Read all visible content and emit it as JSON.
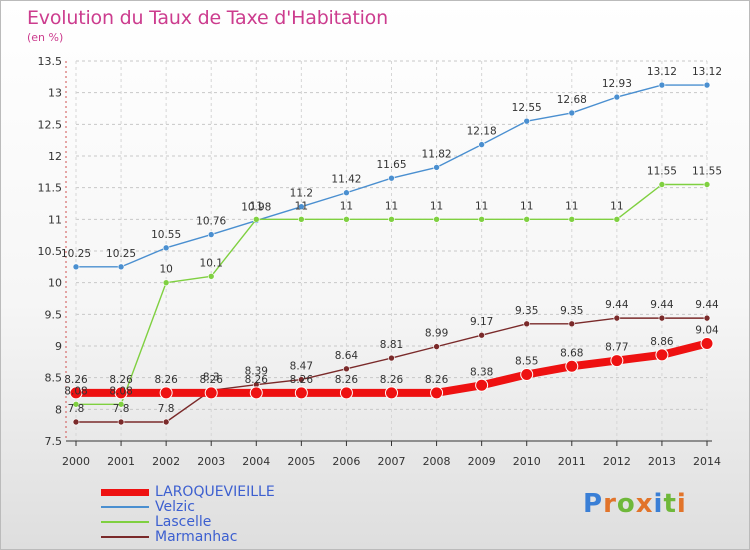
{
  "header": {
    "title": "Evolution du Taux de Taxe d'Habitation",
    "subtitle": "(en %)"
  },
  "logo": {
    "text": "Proxiti",
    "colors": [
      "#3a7fd6",
      "#e2742a",
      "#6fb83a",
      "#e2742a",
      "#3a7fd6",
      "#6fb83a",
      "#e2742a"
    ]
  },
  "chart_data": {
    "type": "line",
    "x": [
      2000,
      2001,
      2002,
      2003,
      2004,
      2005,
      2006,
      2007,
      2008,
      2009,
      2010,
      2011,
      2012,
      2013,
      2014
    ],
    "ylim": [
      7.5,
      13.5
    ],
    "yticks": [
      "7.5",
      "8",
      "8.5",
      "9",
      "9.5",
      "10",
      "10.5",
      "11",
      "11.5",
      "12",
      "12.5",
      "13",
      "13.5"
    ],
    "grid": "horizontal dashed",
    "legend_position": "bottom-left",
    "series": [
      {
        "name": "LAROQUEVIEILLE",
        "color": "#ee1111",
        "values": [
          8.26,
          8.26,
          8.26,
          8.26,
          8.26,
          8.26,
          8.26,
          8.26,
          8.26,
          8.38,
          8.55,
          8.68,
          8.77,
          8.86,
          9.04
        ],
        "labels": [
          "8.26",
          "8.26",
          "8.26",
          "8.26",
          "8.26",
          "8.26",
          "8.26",
          "8.26",
          "8.26",
          "8.38",
          "8.55",
          "8.68",
          "8.77",
          "8.86",
          "9.04"
        ]
      },
      {
        "name": "Velzic",
        "color": "#4a8fd0",
        "values": [
          10.25,
          10.25,
          10.55,
          10.76,
          10.98,
          11.2,
          11.42,
          11.65,
          11.82,
          12.18,
          12.55,
          12.68,
          12.93,
          13.12,
          13.12
        ],
        "labels": [
          "10.25",
          "10.25",
          "10.55",
          "10.76",
          "10.98",
          "11.2",
          "11.42",
          "11.65",
          "11.82",
          "12.18",
          "12.55",
          "12.68",
          "12.93",
          "13.12",
          "13.12"
        ]
      },
      {
        "name": "Lascelle",
        "color": "#7fd040",
        "values": [
          8.08,
          8.08,
          10,
          10.1,
          11,
          11,
          11,
          11,
          11,
          11,
          11,
          11,
          11,
          11.55,
          11.55
        ],
        "labels": [
          "8.08",
          "8.08",
          "10",
          "10.1",
          "11",
          "11",
          "11",
          "11",
          "11",
          "11",
          "11",
          "11",
          "11",
          "11.55",
          "11.55"
        ]
      },
      {
        "name": "Marmanhac",
        "color": "#7a2a2a",
        "values": [
          7.8,
          7.8,
          7.8,
          8.3,
          8.39,
          8.47,
          8.64,
          8.81,
          8.99,
          9.17,
          9.35,
          9.35,
          9.44,
          9.44,
          9.44
        ],
        "labels": [
          "7.8",
          "7.8",
          "7.8",
          "8.3",
          "8.39",
          "8.47",
          "8.64",
          "8.81",
          "8.99",
          "9.17",
          "9.35",
          "9.35",
          "9.44",
          "9.44",
          "9.44"
        ]
      }
    ]
  }
}
